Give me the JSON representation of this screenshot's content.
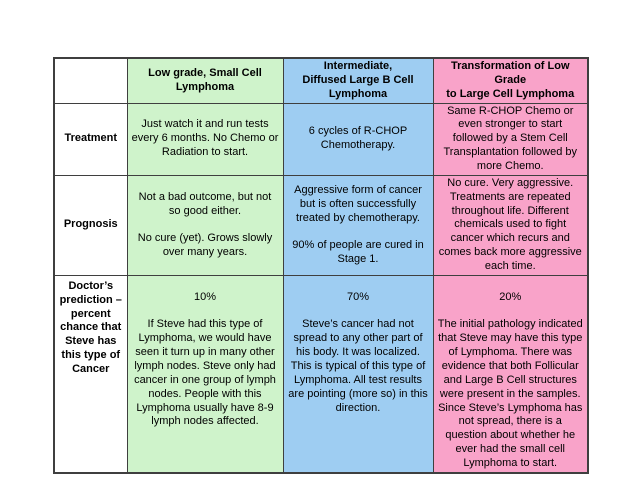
{
  "colors": {
    "column_green": "#cff3cb",
    "column_blue": "#9ecdf2",
    "column_pink": "#f9a3c9",
    "grid_border": "#3f3f3f",
    "background": "#ffffff"
  },
  "table": {
    "column_headers": {
      "corner": "",
      "green": "Low grade, Small Cell\nLymphoma",
      "blue": "Intermediate,\nDiffused Large B Cell\nLymphoma",
      "pink": "Transformation of Low Grade\nto Large Cell Lymphoma"
    },
    "rows": [
      {
        "label": "Treatment",
        "cells": [
          "Just watch it and run tests every 6 months.  No Chemo or Radiation to start.",
          "6 cycles of R-CHOP Chemotherapy.",
          "Same R-CHOP Chemo or even stronger to start followed by a Stem Cell Transplantation followed by more Chemo."
        ]
      },
      {
        "label": "Prognosis",
        "cells": [
          "Not a bad outcome, but not so good either.\n\nNo cure (yet).  Grows slowly over many years.",
          "Aggressive form of cancer but is often successfully treated by chemotherapy.\n\n90% of people are cured in Stage 1.",
          "No cure. Very aggressive. Treatments are repeated throughout life.  Different chemicals used to fight cancer which recurs and comes back more aggressive each time."
        ]
      },
      {
        "label": "Doctor’s prediction – percent chance that Steve has this type of Cancer",
        "percentages": [
          "10%",
          "70%",
          "20%"
        ],
        "cells": [
          "\n10%\n\nIf Steve had this type of Lymphoma, we would have seen it turn up in many other lymph nodes.  Steve only had cancer in one group of lymph nodes.  People with this Lymphoma usually have 8-9 lymph nodes affected.",
          "\n70%\n\nSteve’s cancer had not spread to any other part of his body.  It was localized.  This is typical of this type of Lymphoma.  All test results are pointing (more so) in this direction.",
          "\n20%\n\nThe initial pathology indicated that Steve may have this type of Lymphoma. There was evidence that both Follicular and Large B Cell  structures were present in the samples. Since Steve’s Lymphoma has not spread, there is a question about whether he ever had the small cell Lymphoma to start."
        ]
      }
    ]
  }
}
